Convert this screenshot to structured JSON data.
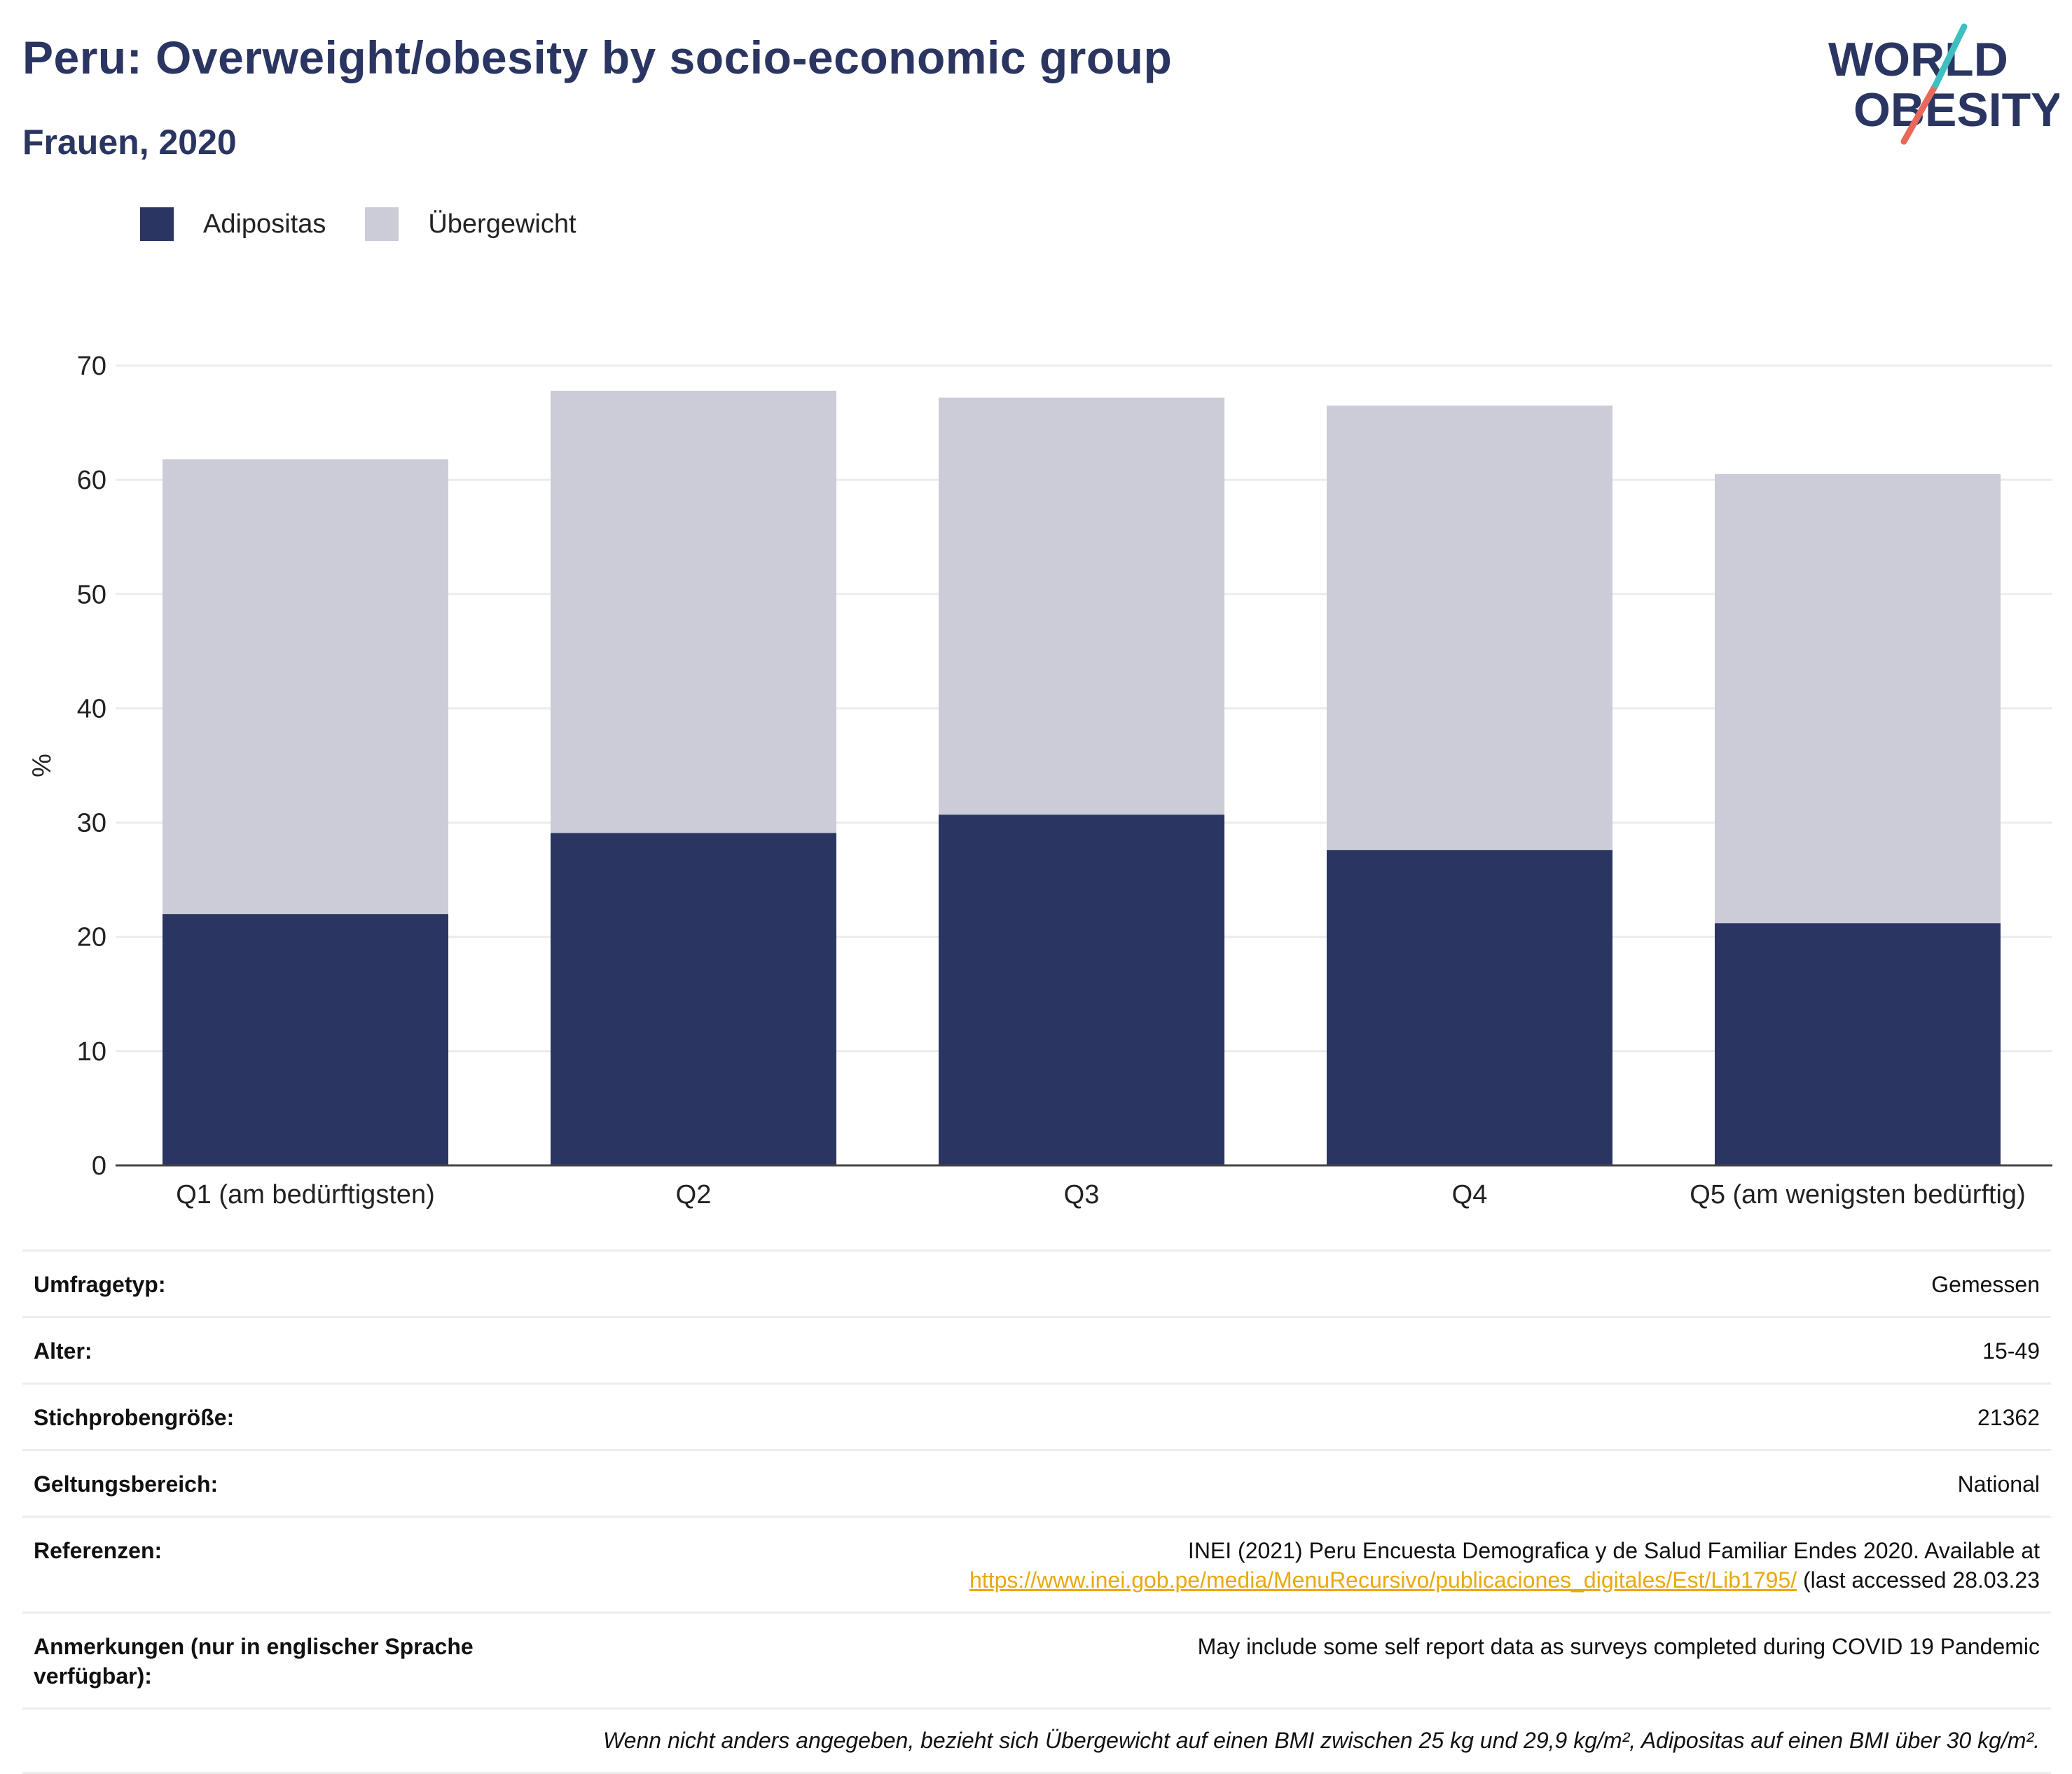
{
  "header": {
    "title": "Peru: Overweight/obesity by socio-economic group",
    "subtitle": "Frauen, 2020"
  },
  "logo": {
    "line1": "WORLD",
    "line2": "OBESITY"
  },
  "colors": {
    "obesity": "#2a3562",
    "overweight": "#cbccd7",
    "accent_teal": "#3fbfbf",
    "accent_coral": "#e8695a"
  },
  "legend": [
    {
      "label": "Adipositas",
      "color": "#2a3562"
    },
    {
      "label": "Übergewicht",
      "color": "#cbccd7"
    }
  ],
  "chart_data": {
    "type": "bar",
    "stacked": true,
    "categories": [
      "Q1 (am bedürftigsten)",
      "Q2",
      "Q3",
      "Q4",
      "Q5 (am wenigsten bedürftig)"
    ],
    "series": [
      {
        "name": "Adipositas",
        "values": [
          22.0,
          29.1,
          30.7,
          27.6,
          21.2
        ]
      },
      {
        "name": "Übergewicht",
        "values": [
          39.8,
          38.7,
          36.5,
          38.9,
          39.3
        ]
      }
    ],
    "totals": [
      61.8,
      67.8,
      67.2,
      66.5,
      60.5
    ],
    "ylabel": "%",
    "ylim": [
      0,
      70
    ],
    "yticks": [
      0,
      10,
      20,
      30,
      40,
      50,
      60,
      70
    ],
    "grid": true,
    "legend_position": "top-left"
  },
  "info": {
    "rows": [
      {
        "label": "Umfragetyp:",
        "value": "Gemessen"
      },
      {
        "label": "Alter:",
        "value": "15-49"
      },
      {
        "label": "Stichprobengröße:",
        "value": "21362"
      },
      {
        "label": "Geltungsbereich:",
        "value": "National"
      }
    ],
    "references": {
      "label": "Referenzen:",
      "text": "INEI (2021) Peru Encuesta Demografica y de Salud Familiar Endes 2020. Available at",
      "link": "https://www.inei.gob.pe/media/MenuRecursivo/publicaciones_digitales/Est/Lib1795/",
      "suffix": " (last accessed 28.03.23"
    },
    "notes": {
      "label": "Anmerkungen (nur in englischer Sprache verfügbar):",
      "value": "May include some self report data as surveys completed during COVID 19 Pandemic"
    },
    "footnote": "Wenn nicht anders angegeben, bezieht sich Übergewicht auf einen BMI zwischen 25 kg und 29,9 kg/m², Adipositas auf einen BMI über 30 kg/m²."
  }
}
